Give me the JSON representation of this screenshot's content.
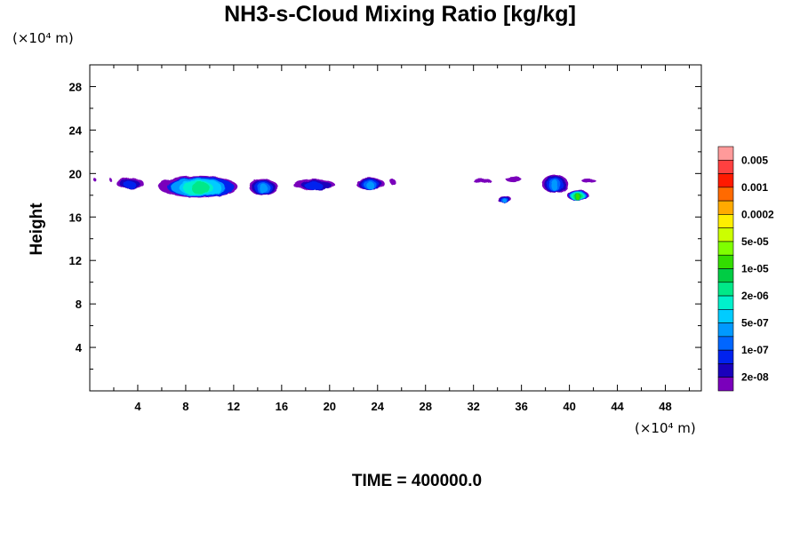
{
  "chart_data": {
    "type": "contour",
    "title": "NH3-s-Cloud Mixing Ratio [kg/kg]",
    "xlabel": "",
    "ylabel": "Height",
    "x_unit": "(×10⁴ m)",
    "y_unit": "(×10⁴ m)",
    "footer": "TIME = 400000.0",
    "xlim": [
      0,
      51
    ],
    "ylim": [
      0,
      30
    ],
    "x_ticks": [
      4,
      8,
      12,
      16,
      20,
      24,
      28,
      32,
      36,
      40,
      44,
      48
    ],
    "y_ticks": [
      4,
      8,
      12,
      16,
      20,
      24,
      28
    ],
    "colorbar": {
      "labels": [
        "0.005",
        "0.001",
        "0.0002",
        "5e-05",
        "1e-05",
        "2e-06",
        "5e-07",
        "1e-07",
        "2e-08"
      ],
      "colors": [
        "#ff9a9a",
        "#ff4040",
        "#ff1a00",
        "#ff6a00",
        "#ffaa00",
        "#ffee00",
        "#ccff00",
        "#7fff00",
        "#33dd00",
        "#00cc44",
        "#00e888",
        "#00f0cc",
        "#00ccff",
        "#0099ff",
        "#0066ff",
        "#0022ee",
        "#1a00bb",
        "#7a00bb"
      ]
    },
    "cloud_features": [
      {
        "x": [
          0.3,
          0.5
        ],
        "y": [
          19.3,
          19.6
        ],
        "max_level": "2e-08"
      },
      {
        "x": [
          1.6,
          1.8
        ],
        "y": [
          19.3,
          19.6
        ],
        "max_level": "2e-08"
      },
      {
        "x": [
          2.2,
          4.5
        ],
        "y": [
          18.6,
          19.6
        ],
        "max_level": "1e-07"
      },
      {
        "x": [
          5.8,
          12.4
        ],
        "y": [
          17.8,
          19.8
        ],
        "max_level": "2e-06"
      },
      {
        "x": [
          13.3,
          15.7
        ],
        "y": [
          18.0,
          19.5
        ],
        "max_level": "5e-07"
      },
      {
        "x": [
          17.0,
          20.5
        ],
        "y": [
          18.5,
          19.5
        ],
        "max_level": "1e-07"
      },
      {
        "x": [
          22.2,
          24.6
        ],
        "y": [
          18.5,
          19.6
        ],
        "max_level": "5e-07"
      },
      {
        "x": [
          25.0,
          25.5
        ],
        "y": [
          19.0,
          19.5
        ],
        "max_level": "2e-08"
      },
      {
        "x": [
          32.0,
          33.5
        ],
        "y": [
          19.1,
          19.5
        ],
        "max_level": "2e-08"
      },
      {
        "x": [
          34.0,
          35.2
        ],
        "y": [
          17.3,
          17.9
        ],
        "max_level": "5e-07"
      },
      {
        "x": [
          34.7,
          36.0
        ],
        "y": [
          19.2,
          19.7
        ],
        "max_level": "2e-08"
      },
      {
        "x": [
          37.7,
          39.9
        ],
        "y": [
          18.2,
          19.9
        ],
        "max_level": "5e-07"
      },
      {
        "x": [
          39.8,
          41.6
        ],
        "y": [
          17.5,
          18.5
        ],
        "max_level": "1e-05"
      },
      {
        "x": [
          41.0,
          42.2
        ],
        "y": [
          19.2,
          19.5
        ],
        "max_level": "2e-08"
      }
    ]
  }
}
